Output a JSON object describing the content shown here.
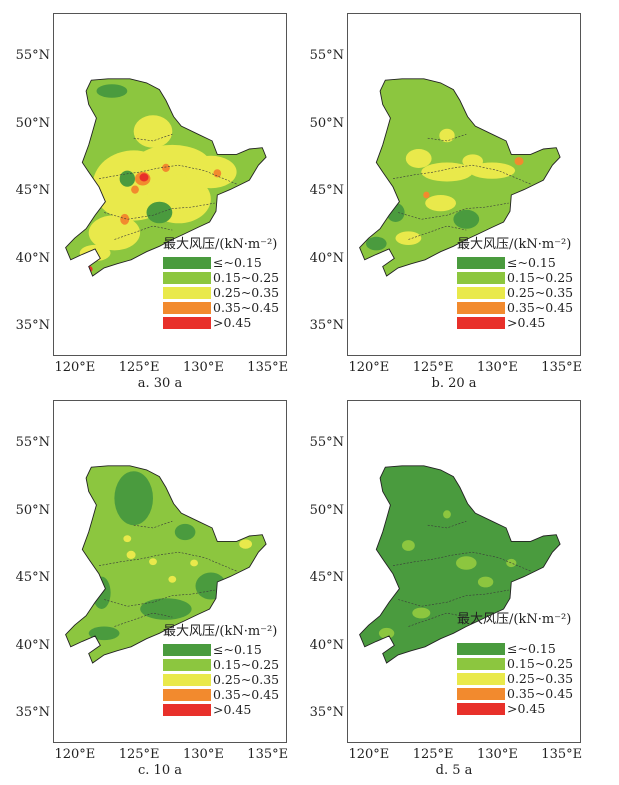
{
  "legend": {
    "title": "最大风压/(kN·m⁻²)",
    "classes": [
      {
        "label": "≤~0.15",
        "color": "#4a9b3e"
      },
      {
        "label": "0.15~0.25",
        "color": "#8cc63f"
      },
      {
        "label": "0.25~0.35",
        "color": "#e9e94b"
      },
      {
        "label": "0.35~0.45",
        "color": "#f28a2e"
      },
      {
        "label": ">0.45",
        "color": "#e8302a"
      }
    ]
  },
  "axes": {
    "lat_ticks": [
      "55°N",
      "50°N",
      "45°N",
      "40°N",
      "35°N"
    ],
    "lon_ticks": [
      "120°E",
      "125°E",
      "130°E",
      "135°E"
    ]
  },
  "panels": [
    {
      "caption": "a.  30 a",
      "base_color": "#8cc63f"
    },
    {
      "caption": "b.  20 a",
      "base_color": "#8cc63f"
    },
    {
      "caption": "c.  10 a",
      "base_color": "#8cc63f"
    },
    {
      "caption": "d.  5 a",
      "base_color": "#4a9b3e"
    }
  ]
}
